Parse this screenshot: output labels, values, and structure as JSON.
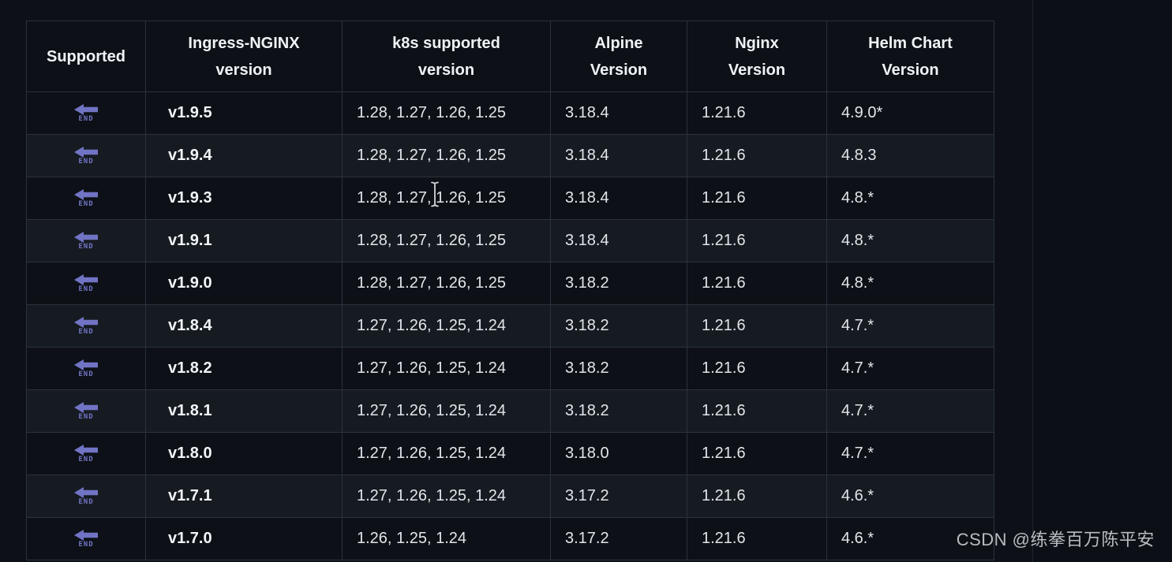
{
  "colors": {
    "page_bg": "#0d1117",
    "row_alt_bg": "#161b22",
    "border": "#2b323b",
    "text": "#e2e6eb",
    "accent_purple": "#7174c4"
  },
  "icons": {
    "end_arrow_label": "END",
    "cursor": "text-ibeam-cursor"
  },
  "watermark": {
    "text": "CSDN @练拳百万陈平安"
  },
  "table": {
    "columns": [
      {
        "id": "supported",
        "line1": "Supported",
        "line2": ""
      },
      {
        "id": "ingress_nginx_version",
        "line1": "Ingress-NGINX",
        "line2": "version"
      },
      {
        "id": "k8s_supported_version",
        "line1": "k8s supported",
        "line2": "version"
      },
      {
        "id": "alpine_version",
        "line1": "Alpine",
        "line2": "Version"
      },
      {
        "id": "nginx_version",
        "line1": "Nginx",
        "line2": "Version"
      },
      {
        "id": "helm_chart_version",
        "line1": "Helm Chart",
        "line2": "Version"
      }
    ],
    "rows": [
      {
        "supported": "end-arrow",
        "ingress": "v1.9.5",
        "k8s": "1.28, 1.27, 1.26, 1.25",
        "alpine": "3.18.4",
        "nginx": "1.21.6",
        "helm": "4.9.0*"
      },
      {
        "supported": "end-arrow",
        "ingress": "v1.9.4",
        "k8s": "1.28, 1.27, 1.26, 1.25",
        "alpine": "3.18.4",
        "nginx": "1.21.6",
        "helm": "4.8.3"
      },
      {
        "supported": "end-arrow",
        "ingress": "v1.9.3",
        "k8s": "1.28, 1.27, 1.26, 1.25",
        "alpine": "3.18.4",
        "nginx": "1.21.6",
        "helm": "4.8.*"
      },
      {
        "supported": "end-arrow",
        "ingress": "v1.9.1",
        "k8s": "1.28, 1.27, 1.26, 1.25",
        "alpine": "3.18.4",
        "nginx": "1.21.6",
        "helm": "4.8.*"
      },
      {
        "supported": "end-arrow",
        "ingress": "v1.9.0",
        "k8s": "1.28, 1.27, 1.26, 1.25",
        "alpine": "3.18.2",
        "nginx": "1.21.6",
        "helm": "4.8.*"
      },
      {
        "supported": "end-arrow",
        "ingress": "v1.8.4",
        "k8s": "1.27, 1.26, 1.25, 1.24",
        "alpine": "3.18.2",
        "nginx": "1.21.6",
        "helm": "4.7.*"
      },
      {
        "supported": "end-arrow",
        "ingress": "v1.8.2",
        "k8s": "1.27, 1.26, 1.25, 1.24",
        "alpine": "3.18.2",
        "nginx": "1.21.6",
        "helm": "4.7.*"
      },
      {
        "supported": "end-arrow",
        "ingress": "v1.8.1",
        "k8s": "1.27, 1.26, 1.25, 1.24",
        "alpine": "3.18.2",
        "nginx": "1.21.6",
        "helm": "4.7.*"
      },
      {
        "supported": "end-arrow",
        "ingress": "v1.8.0",
        "k8s": "1.27, 1.26, 1.25, 1.24",
        "alpine": "3.18.0",
        "nginx": "1.21.6",
        "helm": "4.7.*"
      },
      {
        "supported": "end-arrow",
        "ingress": "v1.7.1",
        "k8s": "1.27, 1.26, 1.25, 1.24",
        "alpine": "3.17.2",
        "nginx": "1.21.6",
        "helm": "4.6.*"
      },
      {
        "supported": "end-arrow",
        "ingress": "v1.7.0",
        "k8s": "1.26, 1.25, 1.24",
        "alpine": "3.17.2",
        "nginx": "1.21.6",
        "helm": "4.6.*"
      }
    ]
  }
}
